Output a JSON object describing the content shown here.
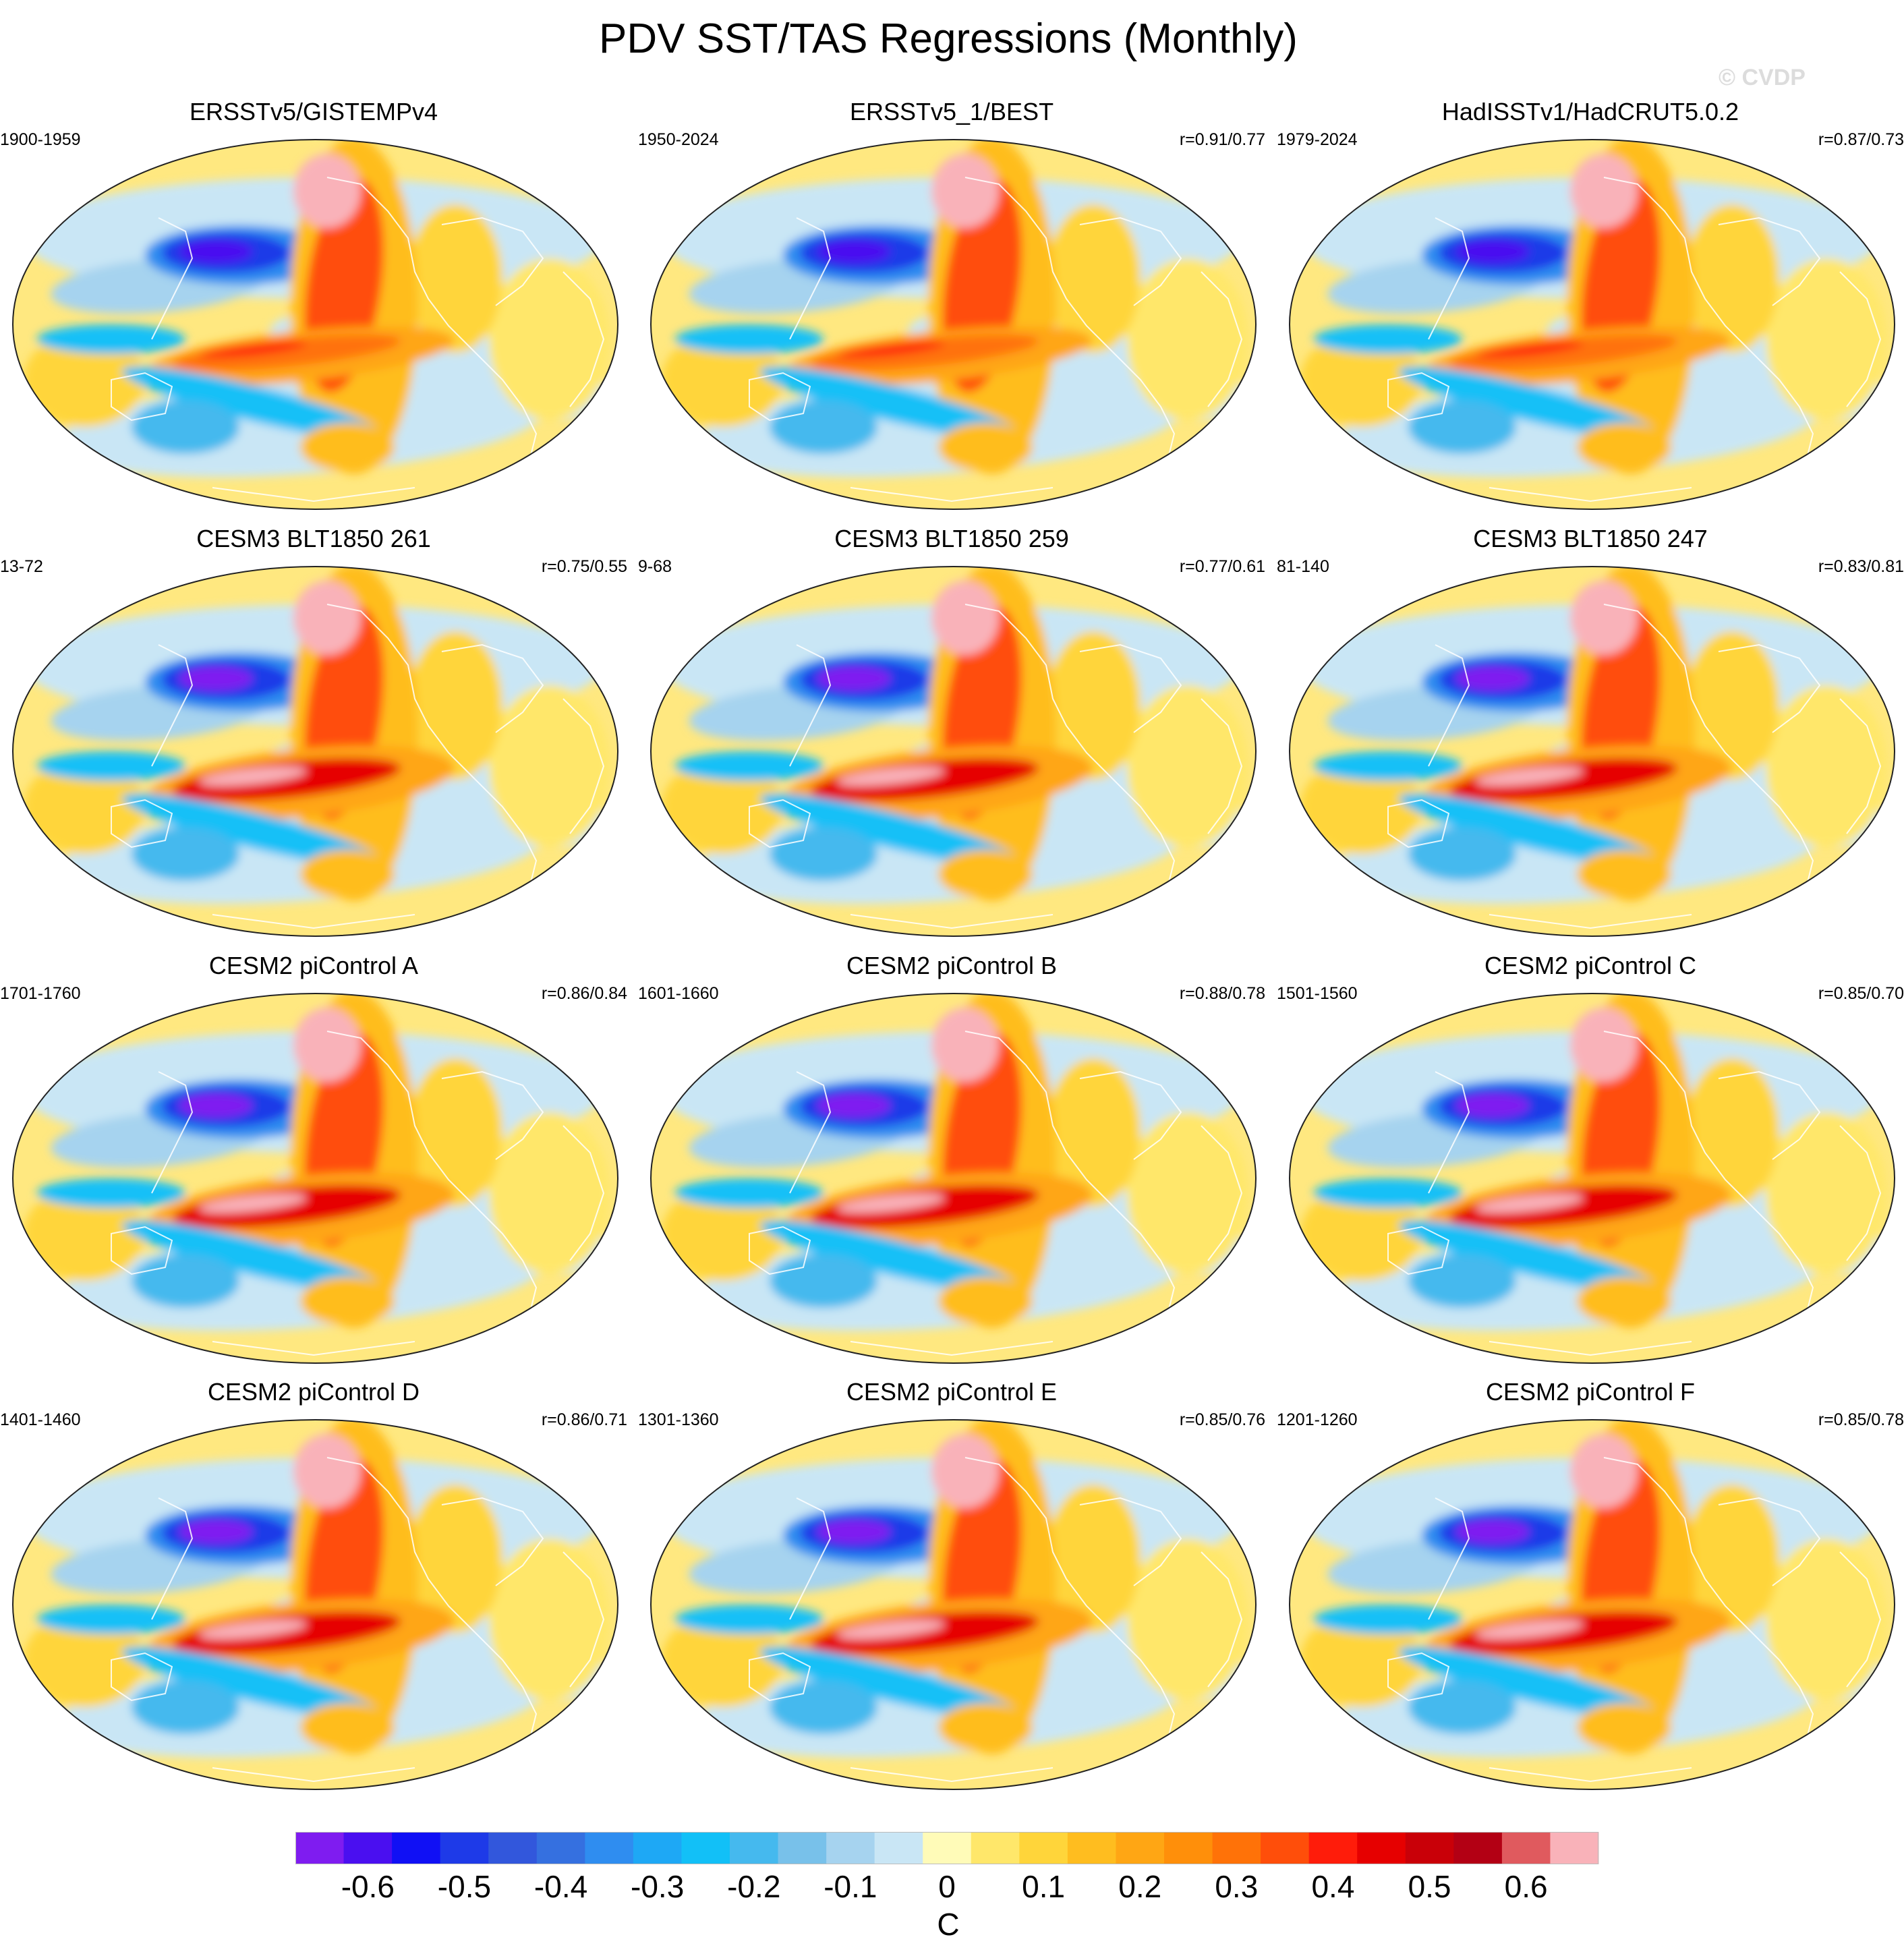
{
  "title": "PDV SST/TAS Regressions (Monthly)",
  "watermark": "© CVDP",
  "panels": [
    {
      "title": "ERSSTv5/GISTEMPv4",
      "period": "1900-1959",
      "corr": ""
    },
    {
      "title": "ERSSTv5_1/BEST",
      "period": "1950-2024",
      "corr": "r=0.91/0.77"
    },
    {
      "title": "HadISSTv1/HadCRUT5.0.2",
      "period": "1979-2024",
      "corr": "r=0.87/0.73"
    },
    {
      "title": "CESM3 BLT1850 261",
      "period": "13-72",
      "corr": "r=0.75/0.55"
    },
    {
      "title": "CESM3 BLT1850 259",
      "period": "9-68",
      "corr": "r=0.77/0.61"
    },
    {
      "title": "CESM3 BLT1850 247",
      "period": "81-140",
      "corr": "r=0.83/0.81"
    },
    {
      "title": "CESM2 piControl A",
      "period": "1701-1760",
      "corr": "r=0.86/0.84"
    },
    {
      "title": "CESM2 piControl B",
      "period": "1601-1660",
      "corr": "r=0.88/0.78"
    },
    {
      "title": "CESM2 piControl C",
      "period": "1501-1560",
      "corr": "r=0.85/0.70"
    },
    {
      "title": "CESM2 piControl D",
      "period": "1401-1460",
      "corr": "r=0.86/0.71"
    },
    {
      "title": "CESM2 piControl E",
      "period": "1301-1360",
      "corr": "r=0.85/0.76"
    },
    {
      "title": "CESM2 piControl F",
      "period": "1201-1260",
      "corr": "r=0.85/0.78"
    }
  ],
  "colorbar": {
    "colors": [
      "#7f1cf0",
      "#4a0ff0",
      "#1010f5",
      "#1e3ae8",
      "#3257dc",
      "#3570e0",
      "#2f8df0",
      "#1ea8f5",
      "#12c0f7",
      "#45b9ee",
      "#78c1ea",
      "#a6d3ef",
      "#c9e6f5",
      "#fffbb8",
      "#ffe76a",
      "#ffd53a",
      "#ffbd1f",
      "#ffa614",
      "#ff8f0a",
      "#ff7208",
      "#ff4e0a",
      "#ff1c0a",
      "#e60000",
      "#c90008",
      "#b30014",
      "#e05a5e",
      "#f9b2b9"
    ],
    "labels": [
      "-0.6",
      "-0.5",
      "-0.4",
      "-0.3",
      "-0.2",
      "-0.1",
      "0",
      "0.1",
      "0.2",
      "0.3",
      "0.4",
      "0.5",
      "0.6"
    ],
    "unit": "C"
  }
}
